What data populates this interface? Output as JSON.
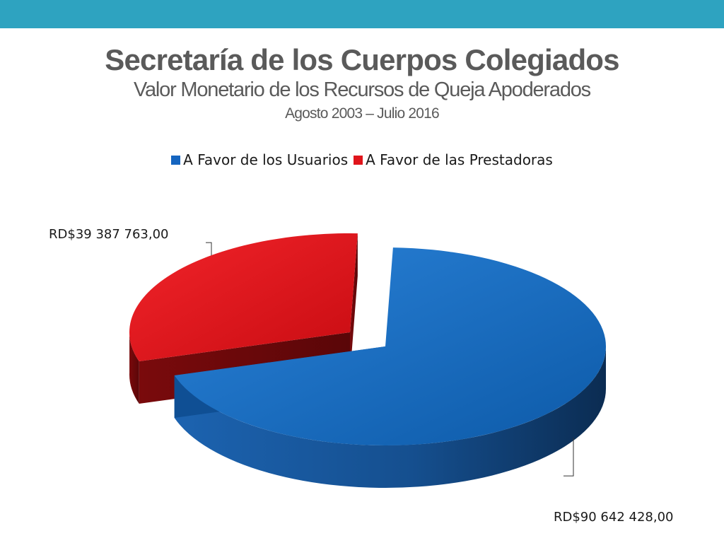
{
  "colors": {
    "top_bar": "#2ea3c0",
    "title_text": "#5a5a5a"
  },
  "slide": {
    "title": "Secretaría de los Cuerpos Colegiados",
    "subtitle": "Valor Monetario de los Recursos de Queja Apoderados",
    "period": "Agosto 2003 – Julio  2016"
  },
  "chart_data": {
    "type": "pie",
    "style": "3d-exploded",
    "legend_position": "top",
    "slices": [
      {
        "name": "A Favor de los Usuarios",
        "value": 90642428.0,
        "label": "RD$90 642 428,00",
        "color": "#1565c0"
      },
      {
        "name": "A Favor de las Prestadoras",
        "value": 39387763.0,
        "label": "RD$39 387 763,00",
        "color": "#e0151b"
      }
    ]
  }
}
